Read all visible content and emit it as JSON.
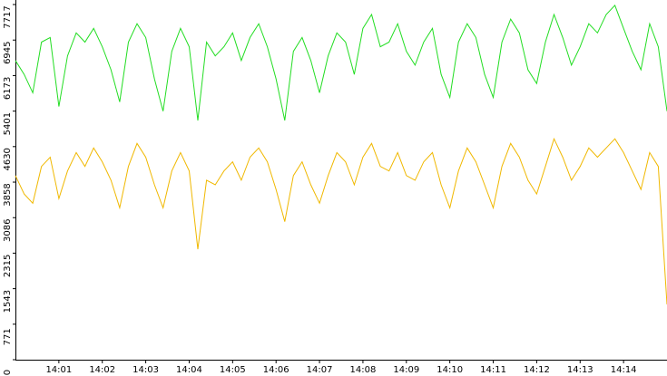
{
  "chart_data": {
    "type": "line",
    "x": [
      0,
      0.2,
      0.4,
      0.6,
      0.8,
      1,
      1.2,
      1.4,
      1.6,
      1.8,
      2,
      2.2,
      2.4,
      2.6,
      2.8,
      3,
      3.2,
      3.4,
      3.6,
      3.8,
      4,
      4.2,
      4.4,
      4.6,
      4.8,
      5,
      5.2,
      5.4,
      5.6,
      5.8,
      6,
      6.2,
      6.4,
      6.6,
      6.8,
      7,
      7.2,
      7.4,
      7.6,
      7.8,
      8,
      8.2,
      8.4,
      8.6,
      8.8,
      9,
      9.2,
      9.4,
      9.6,
      9.8,
      10,
      10.2,
      10.4,
      10.6,
      10.8,
      11,
      11.2,
      11.4,
      11.6,
      11.8,
      12,
      12.2,
      12.4,
      12.6,
      12.8,
      13,
      13.2,
      13.4,
      13.6,
      13.8,
      14,
      14.2,
      14.4,
      14.6,
      14.8,
      15
    ],
    "series": [
      {
        "color": "#22dd22",
        "values": [
          6500,
          6200,
          5800,
          6900,
          7000,
          5500,
          6600,
          7100,
          6900,
          7200,
          6800,
          6300,
          5600,
          6900,
          7300,
          7000,
          6100,
          5400,
          6700,
          7200,
          6800,
          5200,
          6900,
          6600,
          6800,
          7100,
          6500,
          7000,
          7300,
          6800,
          6100,
          5200,
          6700,
          7000,
          6500,
          5800,
          6600,
          7100,
          6900,
          6200,
          7200,
          7500,
          6800,
          6900,
          7300,
          6700,
          6400,
          6900,
          7200,
          6200,
          5700,
          6900,
          7300,
          7000,
          6200,
          5700,
          6900,
          7400,
          7100,
          6300,
          6000,
          6900,
          7500,
          7000,
          6400,
          6800,
          7300,
          7100,
          7500,
          7700,
          7200,
          6700,
          6300,
          7300,
          6800,
          5400
        ]
      },
      {
        "color": "#f0b800",
        "values": [
          4000,
          3600,
          3400,
          4200,
          4400,
          3500,
          4100,
          4500,
          4200,
          4600,
          4300,
          3900,
          3300,
          4200,
          4700,
          4400,
          3800,
          3300,
          4100,
          4500,
          4100,
          2400,
          3900,
          3800,
          4100,
          4300,
          3900,
          4400,
          4600,
          4300,
          3700,
          3000,
          4000,
          4300,
          3800,
          3400,
          4000,
          4500,
          4300,
          3800,
          4400,
          4700,
          4200,
          4100,
          4500,
          4000,
          3900,
          4300,
          4500,
          3800,
          3300,
          4100,
          4600,
          4300,
          3800,
          3300,
          4200,
          4700,
          4400,
          3900,
          3600,
          4200,
          4800,
          4400,
          3900,
          4200,
          4600,
          4400,
          4600,
          4800,
          4500,
          4100,
          3700,
          4500,
          4200,
          1200
        ]
      }
    ],
    "xlim": [
      0,
      15
    ],
    "xticks": [
      {
        "value": 1,
        "label": "14:01"
      },
      {
        "value": 2,
        "label": "14:02"
      },
      {
        "value": 3,
        "label": "14:03"
      },
      {
        "value": 4,
        "label": "14:04"
      },
      {
        "value": 5,
        "label": "14:05"
      },
      {
        "value": 6,
        "label": "14:06"
      },
      {
        "value": 7,
        "label": "14:07"
      },
      {
        "value": 8,
        "label": "14:08"
      },
      {
        "value": 9,
        "label": "14:09"
      },
      {
        "value": 10,
        "label": "14:10"
      },
      {
        "value": 11,
        "label": "14:11"
      },
      {
        "value": 12,
        "label": "14:12"
      },
      {
        "value": 13,
        "label": "14:13"
      },
      {
        "value": 14,
        "label": "14:14"
      }
    ],
    "ylim": [
      0,
      7717
    ],
    "yticks": [
      0,
      771,
      1543,
      2315,
      3086,
      3858,
      4630,
      5401,
      6173,
      6945,
      7717
    ]
  }
}
